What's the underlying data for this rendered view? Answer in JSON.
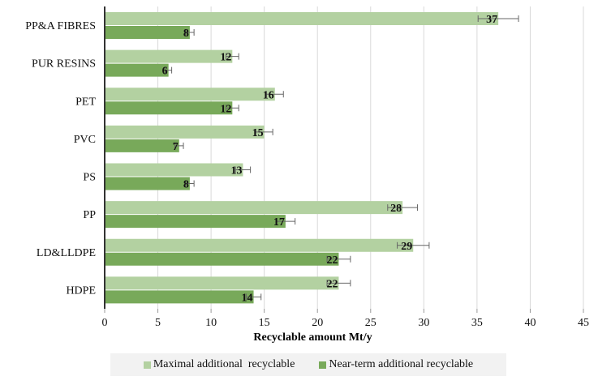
{
  "chart_data": {
    "type": "bar",
    "orientation": "horizontal",
    "title": "",
    "xlabel": "Recyclable amount Mt/y",
    "ylabel": "",
    "xlim": [
      0,
      45
    ],
    "xticks": [
      "0",
      "5",
      "10",
      "15",
      "20",
      "25",
      "30",
      "35",
      "40",
      "45"
    ],
    "grid": true,
    "legend_placement": "bottom",
    "categories": [
      "PP&A FIBRES",
      "PUR RESINS",
      "PET",
      "PVC",
      "PS",
      "PP",
      "LD&LLDPE",
      "HDPE"
    ],
    "series": [
      {
        "name": "Maximal additional  recyclable",
        "color": "#b3d1a1",
        "values": [
          37,
          12,
          16,
          15,
          13,
          28,
          29,
          22
        ],
        "errors": [
          1.9,
          0.6,
          0.8,
          0.8,
          0.7,
          1.4,
          1.5,
          1.1
        ]
      },
      {
        "name": "Near-term additional recyclable",
        "color": "#78a95a",
        "values": [
          8,
          6,
          12,
          7,
          8,
          17,
          22,
          14
        ],
        "errors": [
          0.4,
          0.3,
          0.6,
          0.4,
          0.4,
          0.9,
          1.1,
          0.7
        ]
      }
    ]
  }
}
